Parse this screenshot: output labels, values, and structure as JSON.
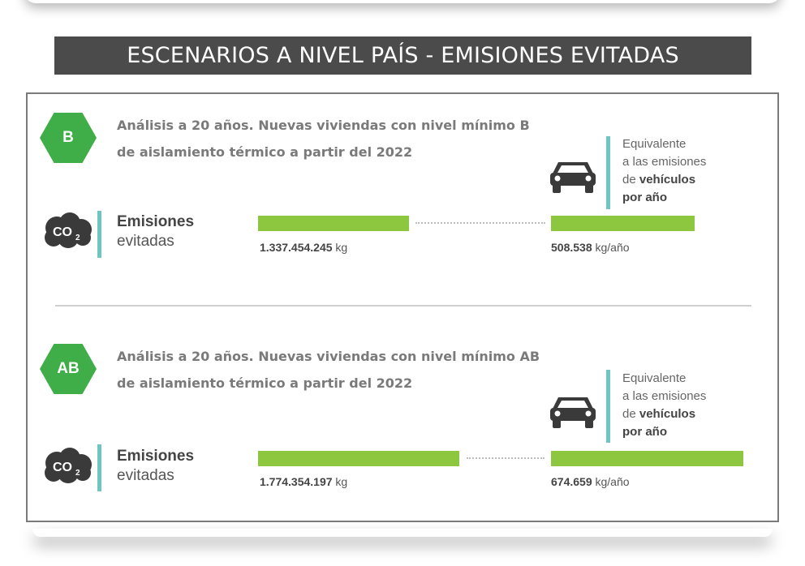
{
  "header": {
    "title": "ESCENARIOS A NIVEL PAÍS - EMISIONES EVITADAS"
  },
  "colors": {
    "accent_green": "#8dc63f",
    "hex_green": "#3fad48",
    "teal_rule": "#6fc5c1",
    "banner": "#4b4b4b"
  },
  "scenarios": [
    {
      "badge": "B",
      "analysis_line1": "Análisis a 20 años. Nuevas viviendas con nivel mínimo B",
      "analysis_line2": "de aislamiento térmico a partir del 2022",
      "co2_icon": "co2-cloud-icon",
      "co2_label": "CO",
      "co2_sub": "2",
      "emis_bold": "Emisiones",
      "emis_rest": "evitadas",
      "total_number": "1.337.454.245",
      "total_unit": "kg",
      "equiv_icon": "car-icon",
      "equiv_line1": "Equivalente",
      "equiv_line2": "a las emisiones",
      "equiv_line3a": "de",
      "equiv_line3b": "vehículos",
      "equiv_line4": "por año",
      "annual_number": "508.538",
      "annual_unit": "kg/año"
    },
    {
      "badge": "AB",
      "analysis_line1": "Análisis a 20 años. Nuevas viviendas con nivel mínimo AB",
      "analysis_line2": "de aislamiento térmico a partir del 2022",
      "co2_icon": "co2-cloud-icon",
      "co2_label": "CO",
      "co2_sub": "2",
      "emis_bold": "Emisiones",
      "emis_rest": "evitadas",
      "total_number": "1.774.354.197",
      "total_unit": "kg",
      "equiv_icon": "car-icon",
      "equiv_line1": "Equivalente",
      "equiv_line2": "a las emisiones",
      "equiv_line3a": "de",
      "equiv_line3b": "vehículos",
      "equiv_line4": "por año",
      "annual_number": "674.659",
      "annual_unit": "kg/año"
    }
  ]
}
